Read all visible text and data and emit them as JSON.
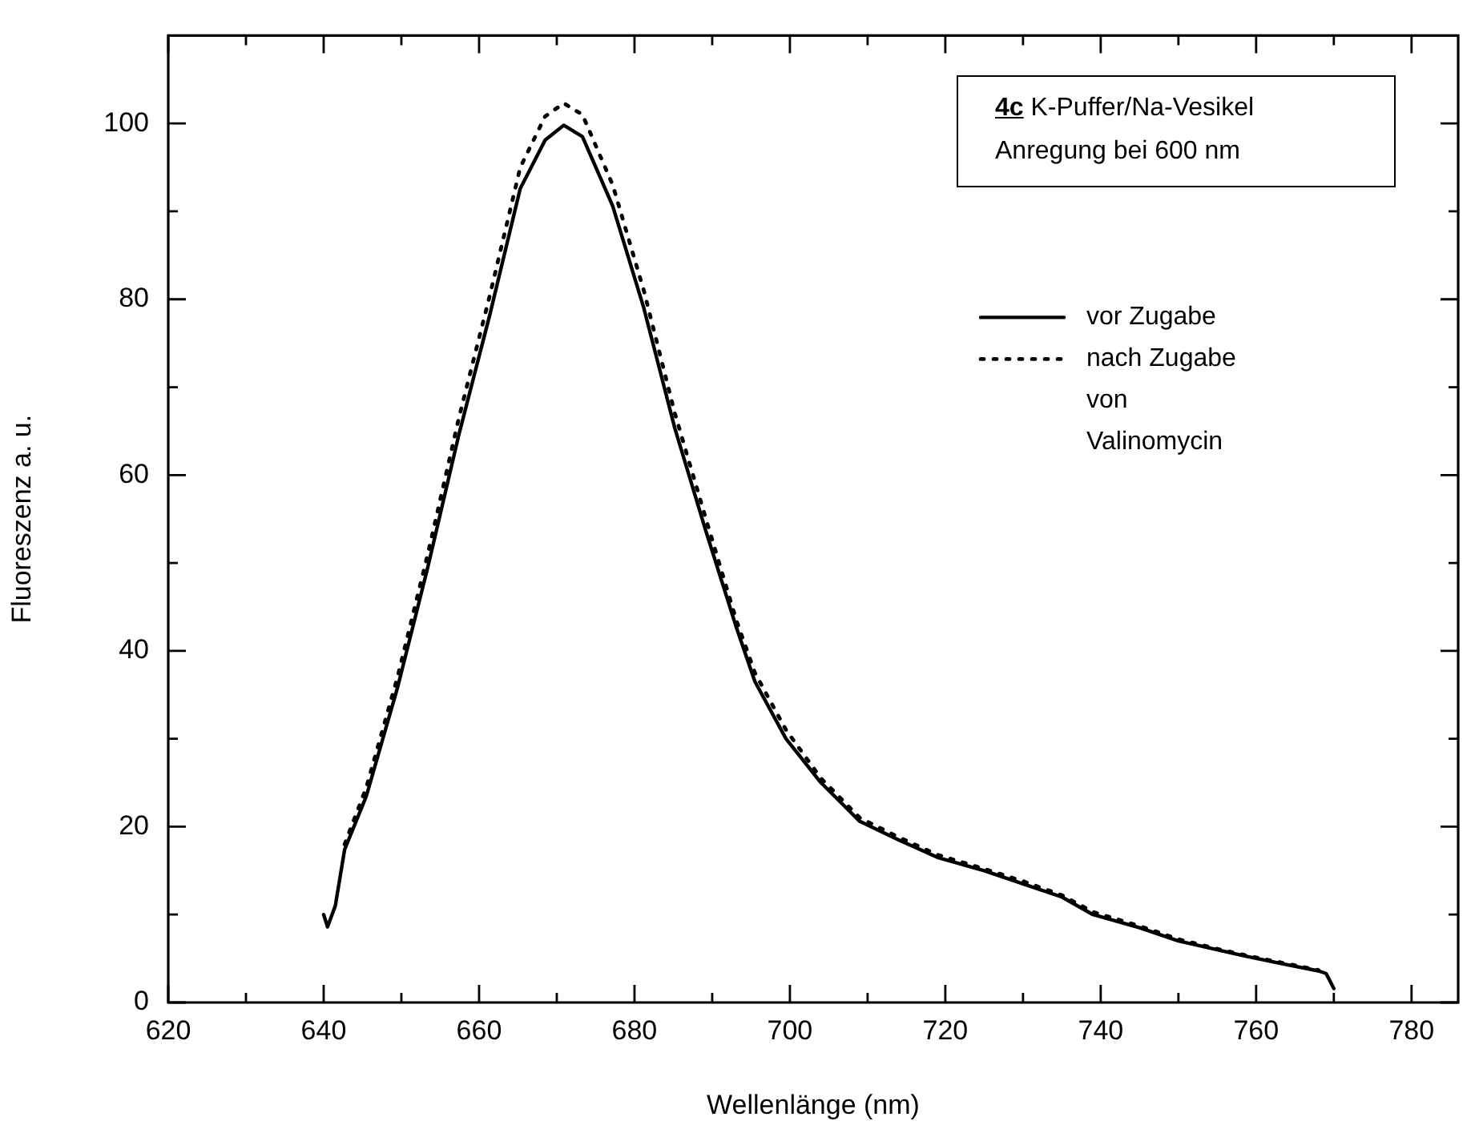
{
  "chart_data": {
    "type": "line",
    "xlabel": "Wellenlänge (nm)",
    "ylabel": "Fluoreszenz a. u.",
    "annotations": [
      "4c K-Puffer/Na-Vesikel",
      "Anregung bei 600 nm"
    ],
    "legend": "top right",
    "grid": false,
    "marker": "none",
    "xlim": [
      620,
      786
    ],
    "ylim": [
      0,
      110
    ],
    "xticks": [
      620,
      {
        "value": 630,
        "label": null
      },
      640,
      {
        "value": 650,
        "label": null
      },
      660,
      {
        "value": 670,
        "label": null
      },
      680,
      {
        "value": 690,
        "label": null
      },
      700,
      {
        "value": 710,
        "label": null
      },
      720,
      {
        "value": 730,
        "label": null
      },
      740,
      {
        "value": 750,
        "label": null
      },
      760,
      {
        "value": 770,
        "label": null
      },
      780
    ],
    "yticks": [
      0,
      {
        "value": 10,
        "label": null
      },
      20,
      {
        "value": 30,
        "label": null
      },
      40,
      {
        "value": 50,
        "label": null
      },
      60,
      {
        "value": 70,
        "label": null
      },
      80,
      {
        "value": 90,
        "label": null
      },
      100
    ],
    "series": [
      {
        "name": "vor Zugabe",
        "color": "#000000",
        "line_style": "solid",
        "x": [
          640,
          640.5,
          641.5,
          642.7,
          645.5,
          649.5,
          653.4,
          657.4,
          661.4,
          665.3,
          668.5,
          670.9,
          673.3,
          677.2,
          681.2,
          685.2,
          689.2,
          693.1,
          695.5,
          699.5,
          704,
          709,
          714,
          719,
          725,
          730,
          735,
          739,
          745,
          750,
          755,
          759,
          764,
          768,
          769,
          770
        ],
        "values": [
          10,
          8.6,
          11,
          17.4,
          23.5,
          35.8,
          49.5,
          64.6,
          78.3,
          92.6,
          98.1,
          99.8,
          98.5,
          90.6,
          79,
          65.3,
          53.6,
          42.7,
          36.5,
          30,
          25,
          20.6,
          18.5,
          16.5,
          15,
          13.5,
          12,
          10,
          8.5,
          7,
          6,
          5.2,
          4.3,
          3.6,
          3.3,
          1.6
        ]
      },
      {
        "name": "nach Zugabe von Valinomycin",
        "color": "#000000",
        "line_style": "dotted",
        "x": [
          642.7,
          645.5,
          649.5,
          653.4,
          657.4,
          661.4,
          665.3,
          668.5,
          670.9,
          673.3,
          677.2,
          681.2,
          685.2,
          689.2,
          693.1,
          695.5,
          699.5,
          704,
          709,
          714,
          719,
          725,
          730,
          735,
          739,
          745,
          750,
          755,
          759,
          764,
          768
        ],
        "values": [
          18,
          24.5,
          37,
          51,
          66.5,
          80.5,
          95,
          100.8,
          102.3,
          101,
          93,
          81,
          67,
          55,
          43.5,
          37.5,
          31,
          25.5,
          21,
          18.8,
          16.8,
          15.2,
          13.8,
          12.2,
          10.3,
          8.7,
          7.2,
          6.1,
          5.3,
          4.4,
          3.7
        ]
      }
    ]
  }
}
